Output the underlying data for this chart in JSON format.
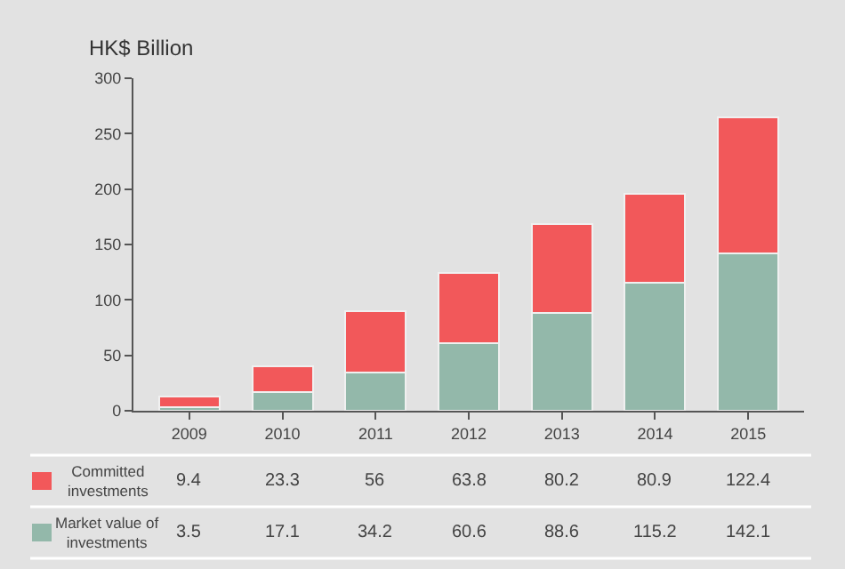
{
  "chart_data": {
    "type": "bar",
    "stacked": true,
    "ylabel": "HK$ Billion",
    "categories": [
      "2009",
      "2010",
      "2011",
      "2012",
      "2013",
      "2014",
      "2015"
    ],
    "series": [
      {
        "name": "Market value of investments",
        "color": "#93b8aa",
        "values": [
          3.5,
          17.1,
          34.2,
          60.6,
          88.6,
          115.2,
          142.1
        ]
      },
      {
        "name": "Committed investments",
        "color": "#f2585a",
        "values": [
          9.4,
          23.3,
          56,
          63.8,
          80.2,
          80.9,
          122.4
        ]
      }
    ],
    "ylim": [
      0,
      300
    ],
    "yticks": [
      0,
      50,
      100,
      150,
      200,
      250,
      300
    ],
    "grid": false,
    "legend": "bottom",
    "data_labels": true
  }
}
